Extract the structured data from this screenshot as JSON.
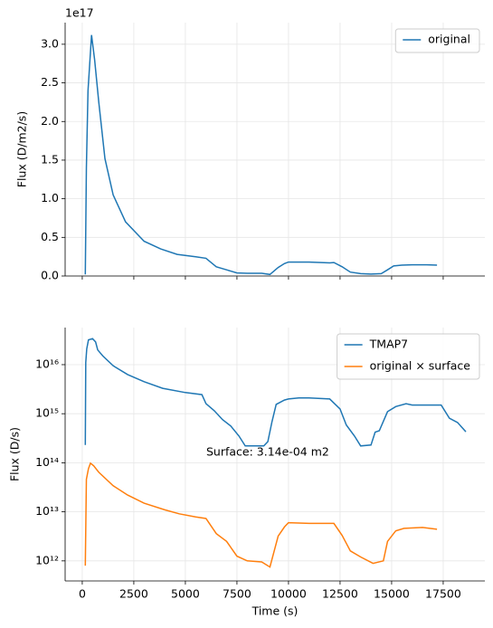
{
  "chart_data": [
    {
      "type": "line",
      "ylabel": "Flux (D/m2/s)",
      "offset_text": "1e17",
      "yscale": "linear",
      "grid": true,
      "legend": "upper right",
      "xtick_labels": false,
      "xlim": [
        -830,
        19520
      ],
      "xticks": [
        0,
        2500,
        5000,
        7500,
        10000,
        12500,
        15000,
        17500
      ],
      "ylim": [
        0,
        3.28
      ],
      "yticks": [
        {
          "value": 0,
          "label": "0.0"
        },
        0.5,
        {
          "value": 1,
          "label": "1.0"
        },
        1.5,
        {
          "value": 2,
          "label": "2.0"
        },
        2.5,
        {
          "value": 3,
          "label": "3.0"
        }
      ],
      "series": [
        {
          "name": "original",
          "color": "#1f77b4",
          "x": [
            150,
            200,
            280,
            450,
            600,
            800,
            1100,
            1500,
            2100,
            3000,
            3800,
            4600,
            5500,
            6000,
            6500,
            7000,
            7500,
            8000,
            8700,
            9100,
            9500,
            9800,
            10000,
            11000,
            12000,
            12200,
            12600,
            13000,
            13500,
            14000,
            14500,
            14800,
            15100,
            15500,
            16000,
            16700,
            17200
          ],
          "values": [
            0.02,
            1.4,
            2.4,
            3.12,
            2.8,
            2.25,
            1.52,
            1.05,
            0.7,
            0.45,
            0.35,
            0.28,
            0.25,
            0.23,
            0.12,
            0.08,
            0.04,
            0.035,
            0.035,
            0.02,
            0.11,
            0.16,
            0.18,
            0.18,
            0.17,
            0.175,
            0.12,
            0.05,
            0.03,
            0.025,
            0.03,
            0.08,
            0.13,
            0.14,
            0.145,
            0.145,
            0.14
          ]
        }
      ]
    },
    {
      "type": "line",
      "xlabel": "Time (s)",
      "ylabel": "Flux (D/s)",
      "yscale": "log",
      "grid": true,
      "legend": "upper right",
      "xtick_labels": true,
      "annotation": "Surface: 3.14e-04 m2",
      "xlim": [
        -830,
        19520
      ],
      "xticks": [
        0,
        2500,
        5000,
        7500,
        10000,
        12500,
        15000,
        17500
      ],
      "ylim": [
        390000000000.0,
        5.7e+16
      ],
      "yticks": [
        {
          "value": 1000000000000.0,
          "label": "10¹²"
        },
        {
          "value": 10000000000000.0,
          "label": "10¹³"
        },
        {
          "value": 100000000000000.0,
          "label": "10¹⁴"
        },
        {
          "value": 1000000000000000.0,
          "label": "10¹⁵"
        },
        {
          "value": 1e+16,
          "label": "10¹⁶"
        }
      ],
      "series": [
        {
          "name": "TMAP7",
          "color": "#1f77b4",
          "x": [
            150,
            170,
            220,
            300,
            500,
            650,
            750,
            1000,
            1500,
            2200,
            3000,
            3900,
            5000,
            5800,
            6000,
            6400,
            6800,
            7200,
            7600,
            7900,
            8800,
            9000,
            9200,
            9400,
            9800,
            10000,
            10500,
            11000,
            12000,
            12500,
            12800,
            13200,
            13500,
            14000,
            14200,
            14400,
            14800,
            15200,
            15700,
            16000,
            17400,
            17800,
            18200,
            18600
          ],
          "values": [
            230000000000000.0,
            1.1e+16,
            2.1e+16,
            3.2e+16,
            3.4e+16,
            2.9e+16,
            2e+16,
            1.5e+16,
            9500000000000000.0,
            6300000000000000.0,
            4500000000000000.0,
            3300000000000000.0,
            2700000000000000.0,
            2450000000000000.0,
            1600000000000000.0,
            1150000000000000.0,
            760000000000000.0,
            560000000000000.0,
            350000000000000.0,
            220000000000000.0,
            220000000000000.0,
            270000000000000.0,
            690000000000000.0,
            1550000000000000.0,
            1900000000000000.0,
            2000000000000000.0,
            2100000000000000.0,
            2100000000000000.0,
            2000000000000000.0,
            1250000000000000.0,
            590000000000000.0,
            350000000000000.0,
            220000000000000.0,
            230000000000000.0,
            420000000000000.0,
            450000000000000.0,
            1100000000000000.0,
            1400000000000000.0,
            1600000000000000.0,
            1500000000000000.0,
            1500000000000000.0,
            810000000000000.0,
            660000000000000.0,
            430000000000000.0
          ]
        },
        {
          "name": "original × surface",
          "color": "#ff7f0e",
          "x": [
            150,
            200,
            300,
            400,
            550,
            800,
            1500,
            2200,
            3000,
            4000,
            4700,
            5500,
            6000,
            6500,
            7000,
            7500,
            8000,
            8700,
            9100,
            9500,
            9800,
            10000,
            11000,
            12200,
            12600,
            13000,
            13500,
            14100,
            14600,
            14800,
            15200,
            15600,
            16500,
            17200
          ],
          "values": [
            800000000000.0,
            46000000000000.0,
            76000000000000.0,
            98000000000000.0,
            87000000000000.0,
            64000000000000.0,
            34000000000000.0,
            22000000000000.0,
            15000000000000.0,
            11000000000000.0,
            9100000000000.0,
            7900000000000.0,
            7300000000000.0,
            3600000000000.0,
            2500000000000.0,
            1250000000000.0,
            1000000000000.0,
            950000000000.0,
            750000000000.0,
            3200000000000.0,
            4900000000000.0,
            6000000000000.0,
            5800000000000.0,
            5800000000000.0,
            3300000000000.0,
            1600000000000.0,
            1200000000000.0,
            890000000000.0,
            1000000000000.0,
            2500000000000.0,
            4100000000000.0,
            4600000000000.0,
            4800000000000.0,
            4400000000000.0
          ]
        }
      ]
    }
  ]
}
